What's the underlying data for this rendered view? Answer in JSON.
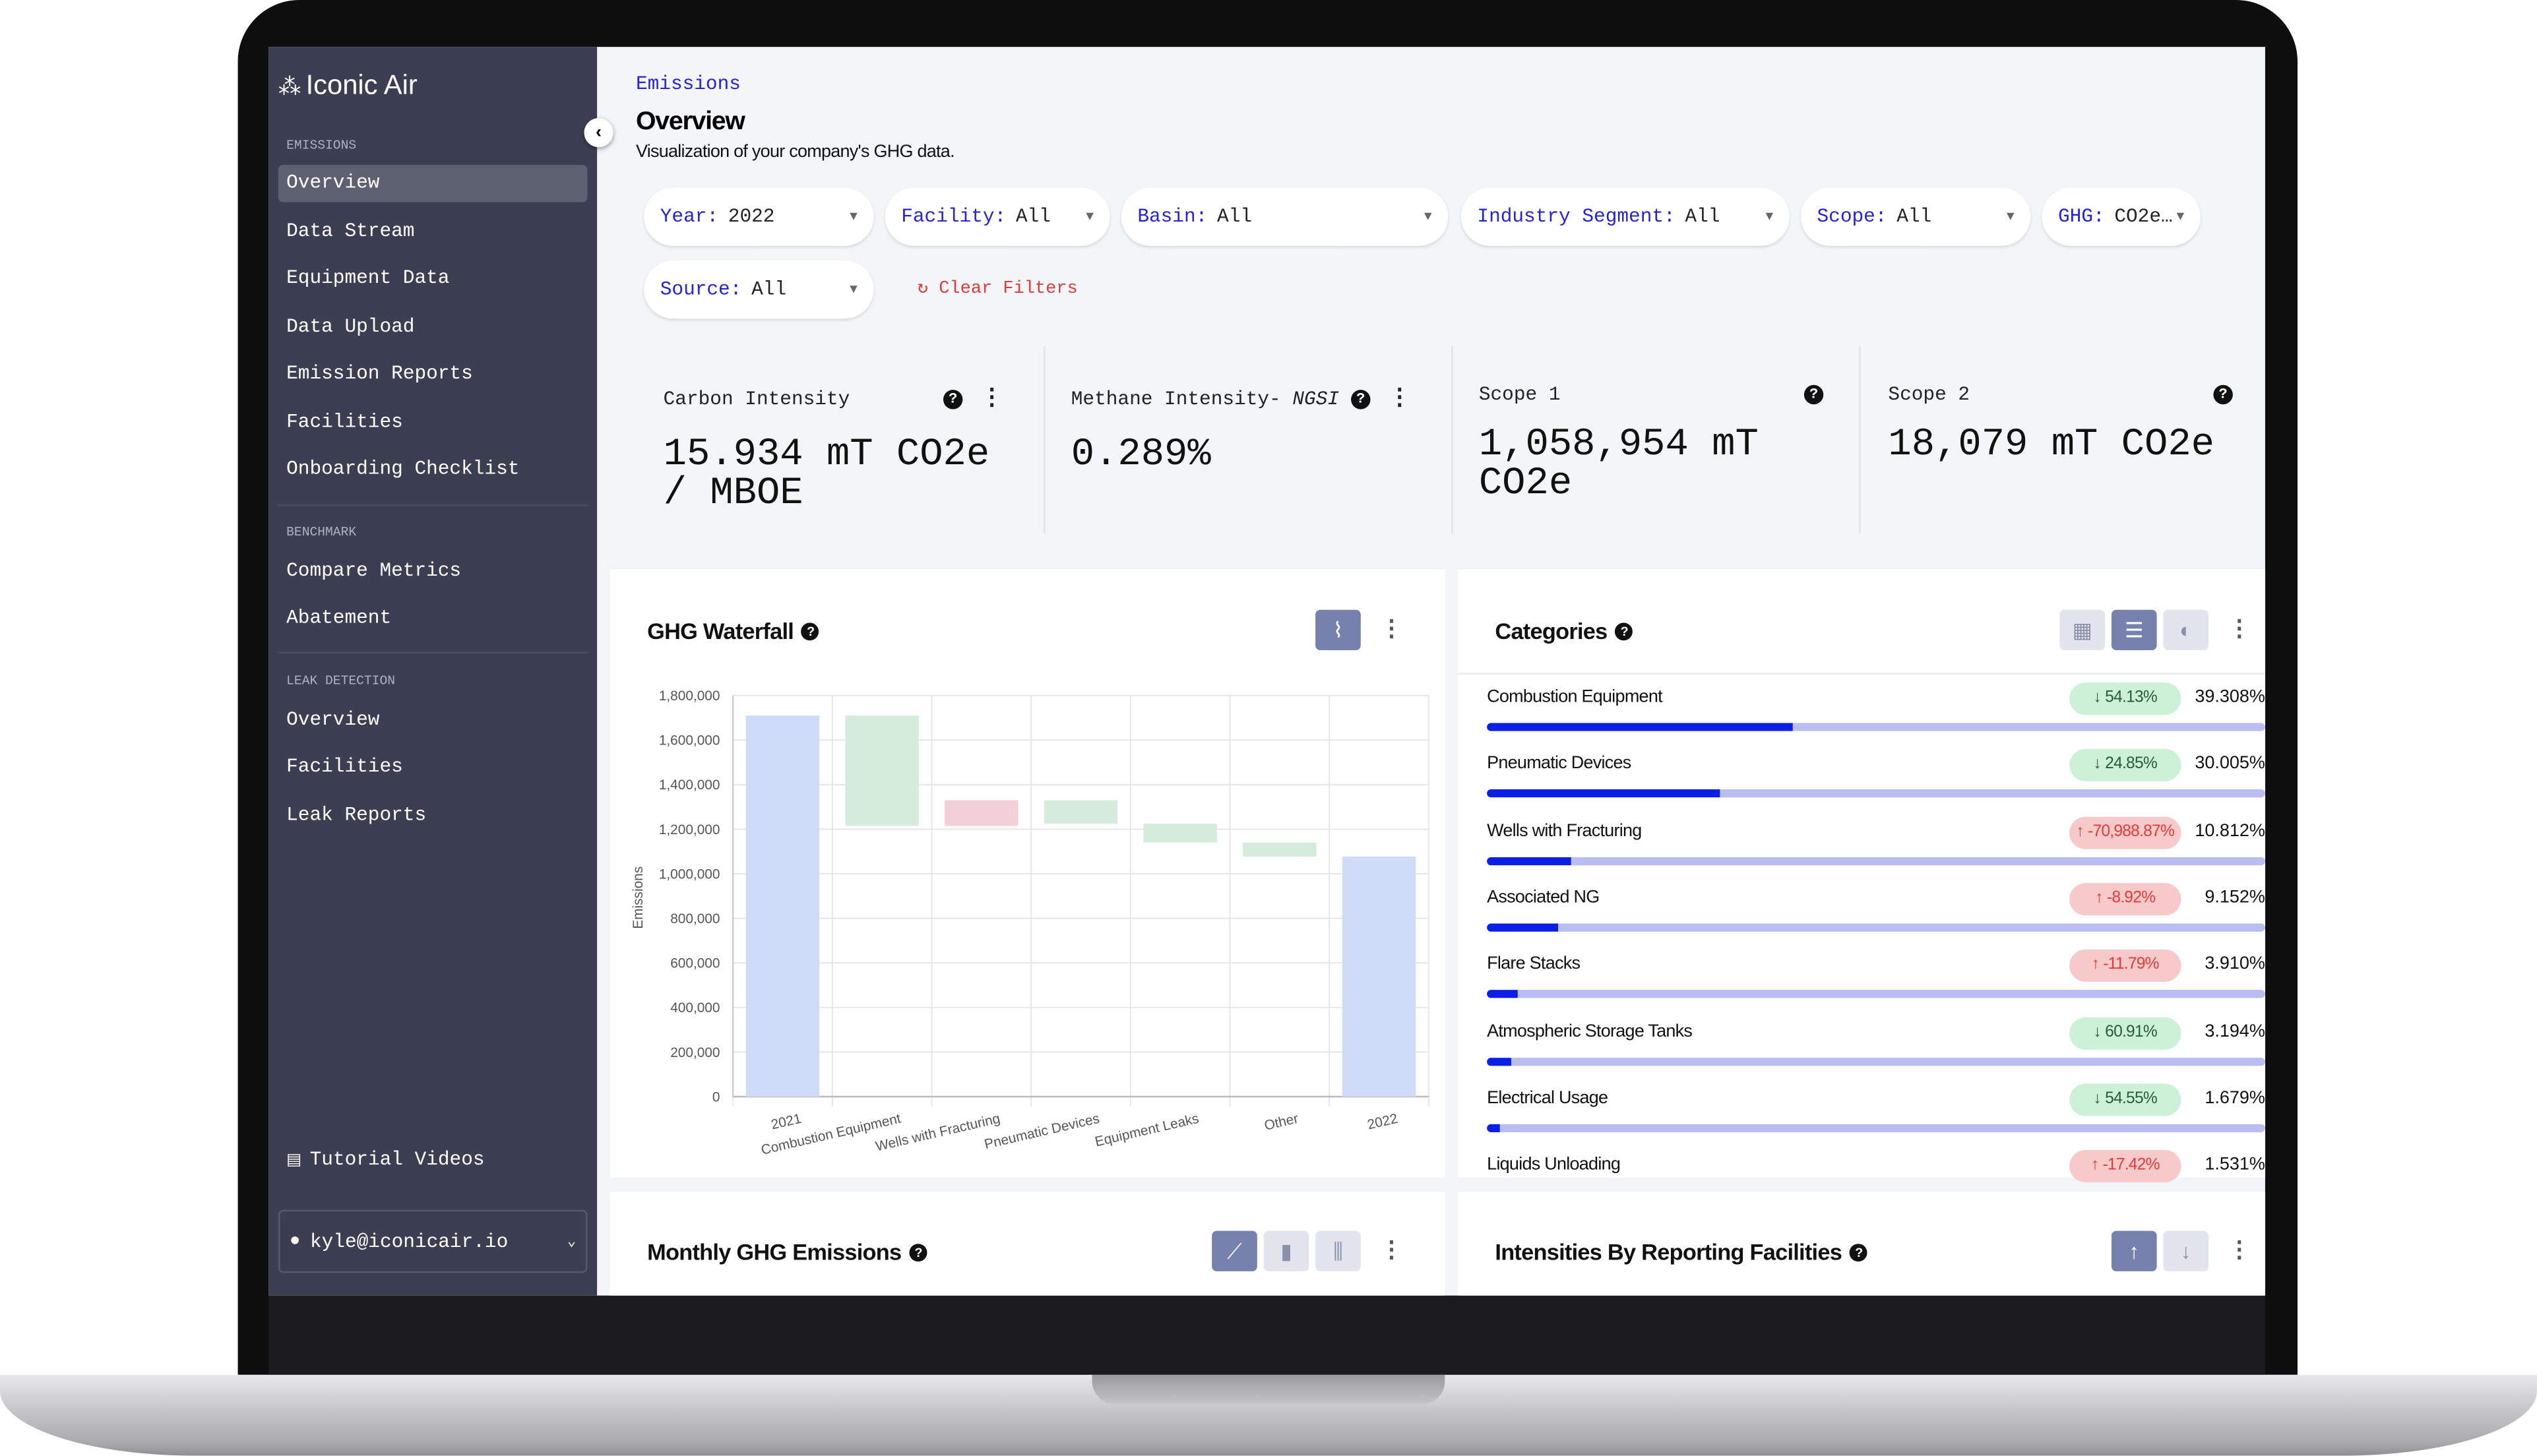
{
  "app": {
    "name": "Iconic Air",
    "logo_icon": "sparkle-dots-icon"
  },
  "sidebar": {
    "sections": [
      {
        "title": "EMISSIONS",
        "items": [
          {
            "label": "Overview",
            "active": true
          },
          {
            "label": "Data Stream"
          },
          {
            "label": "Equipment Data"
          },
          {
            "label": "Data Upload"
          },
          {
            "label": "Emission Reports"
          },
          {
            "label": "Facilities"
          },
          {
            "label": "Onboarding Checklist"
          }
        ]
      },
      {
        "title": "BENCHMARK",
        "items": [
          {
            "label": "Compare Metrics"
          },
          {
            "label": "Abatement"
          }
        ]
      },
      {
        "title": "LEAK DETECTION",
        "items": [
          {
            "label": "Overview"
          },
          {
            "label": "Facilities"
          },
          {
            "label": "Leak Reports"
          }
        ]
      }
    ],
    "tutorial": "Tutorial Videos",
    "user": "kyle@iconicair.io"
  },
  "header": {
    "breadcrumb": "Emissions",
    "title": "Overview",
    "subtitle": "Visualization of your company's GHG data."
  },
  "filters": [
    {
      "label": "Year:",
      "value": "2022"
    },
    {
      "label": "Facility:",
      "value": "All"
    },
    {
      "label": "Basin:",
      "value": "All"
    },
    {
      "label": "Industry Segment:",
      "value": "All"
    },
    {
      "label": "Scope:",
      "value": "All"
    },
    {
      "label": "GHG:",
      "value": "CO2e…"
    },
    {
      "label": "Source:",
      "value": "All"
    }
  ],
  "clear_filters": "Clear Filters",
  "kpis": [
    {
      "label": "Carbon Intensity",
      "value": "15.934 mT CO2e / MBOE"
    },
    {
      "label": "Methane Intensity- ",
      "label_em": "NGSI",
      "value": "0.289%"
    },
    {
      "label": "Scope 1",
      "value": "1,058,954 mT CO2e"
    },
    {
      "label": "Scope 2",
      "value": "18,079 mT CO2e"
    }
  ],
  "waterfall": {
    "title": "GHG Waterfall"
  },
  "chart_data": {
    "type": "waterfall",
    "ylabel": "Emissions",
    "ylim": [
      0,
      1800000
    ],
    "yticks": [
      "0",
      "200,000",
      "400,000",
      "600,000",
      "800,000",
      "1,000,000",
      "1,200,000",
      "1,400,000",
      "1,600,000",
      "1,800,000"
    ],
    "grid": true,
    "categories": [
      "2021",
      "Combustion Equipment",
      "Wells with Fracturing",
      "Pneumatic Devices",
      "Equipment Leaks",
      "Other",
      "2022"
    ],
    "bars": [
      {
        "kind": "total",
        "value": 1710000
      },
      {
        "kind": "decrease",
        "value": -495000
      },
      {
        "kind": "increase",
        "value": 115000
      },
      {
        "kind": "decrease",
        "value": -105000
      },
      {
        "kind": "decrease",
        "value": -85000
      },
      {
        "kind": "decrease",
        "value": -63000
      },
      {
        "kind": "total",
        "value": 1077000
      }
    ],
    "colors": {
      "total": "#cfdcf8",
      "decrease": "#d5ecdc",
      "increase": "#f3d0d8"
    }
  },
  "categories_panel": {
    "title": "Categories",
    "rows": [
      {
        "name": "Combustion Equipment",
        "change": "54.13%",
        "dir": "down",
        "share": "39.308%",
        "pct": 39.308
      },
      {
        "name": "Pneumatic Devices",
        "change": "24.85%",
        "dir": "down",
        "share": "30.005%",
        "pct": 30.005
      },
      {
        "name": "Wells with Fracturing",
        "change": "-70,988.87%",
        "dir": "up",
        "share": "10.812%",
        "pct": 10.812
      },
      {
        "name": "Associated NG",
        "change": "-8.92%",
        "dir": "up",
        "share": "9.152%",
        "pct": 9.152
      },
      {
        "name": "Flare Stacks",
        "change": "-11.79%",
        "dir": "up",
        "share": "3.910%",
        "pct": 3.91
      },
      {
        "name": "Atmospheric Storage Tanks",
        "change": "60.91%",
        "dir": "down",
        "share": "3.194%",
        "pct": 3.194
      },
      {
        "name": "Electrical Usage",
        "change": "54.55%",
        "dir": "down",
        "share": "1.679%",
        "pct": 1.679
      },
      {
        "name": "Liquids Unloading",
        "change": "-17.42%",
        "dir": "up",
        "share": "1.531%",
        "pct": 1.531
      }
    ]
  },
  "monthly": {
    "title": "Monthly GHG Emissions"
  },
  "intensities": {
    "title": "Intensities By Reporting Facilities"
  },
  "colors": {
    "accent": "#2424d6",
    "sidebar": "#3b3f51",
    "bar_fill": "#0b1fe6",
    "bar_track": "#b9bdf2"
  }
}
